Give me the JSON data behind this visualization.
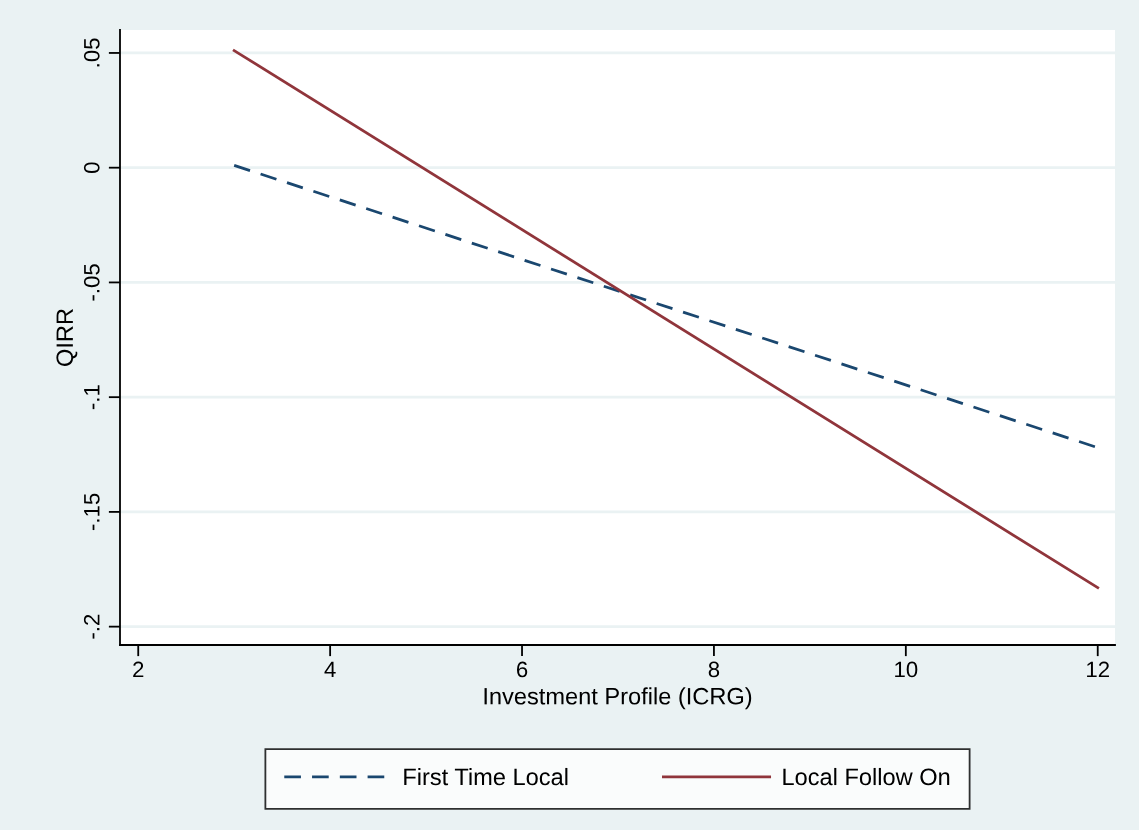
{
  "chart_data": {
    "type": "line",
    "xlabel": "Investment Profile (ICRG)",
    "ylabel": "QIRR",
    "x": [
      3,
      12
    ],
    "series": [
      {
        "name": "First Time Local",
        "color": "#1a476f",
        "line_style": "dashed",
        "values": [
          0.001,
          -0.122
        ]
      },
      {
        "name": "Local Follow On",
        "color": "#90353b",
        "line_style": "solid",
        "values": [
          0.051,
          -0.183
        ]
      }
    ],
    "xlim": [
      1.81,
      12.18
    ],
    "ylim": [
      -0.208,
      0.06
    ],
    "xticks": [
      2,
      4,
      6,
      8,
      10,
      12
    ],
    "yticks": [
      {
        "value": 0.05,
        "label": ".05"
      },
      0,
      {
        "value": -0.05,
        "label": "-.05"
      },
      {
        "value": -0.1,
        "label": "-.1"
      },
      {
        "value": -0.15,
        "label": "-.15"
      },
      {
        "value": -0.2,
        "label": "-.2"
      }
    ],
    "grid": "y",
    "legend": "bottom"
  }
}
